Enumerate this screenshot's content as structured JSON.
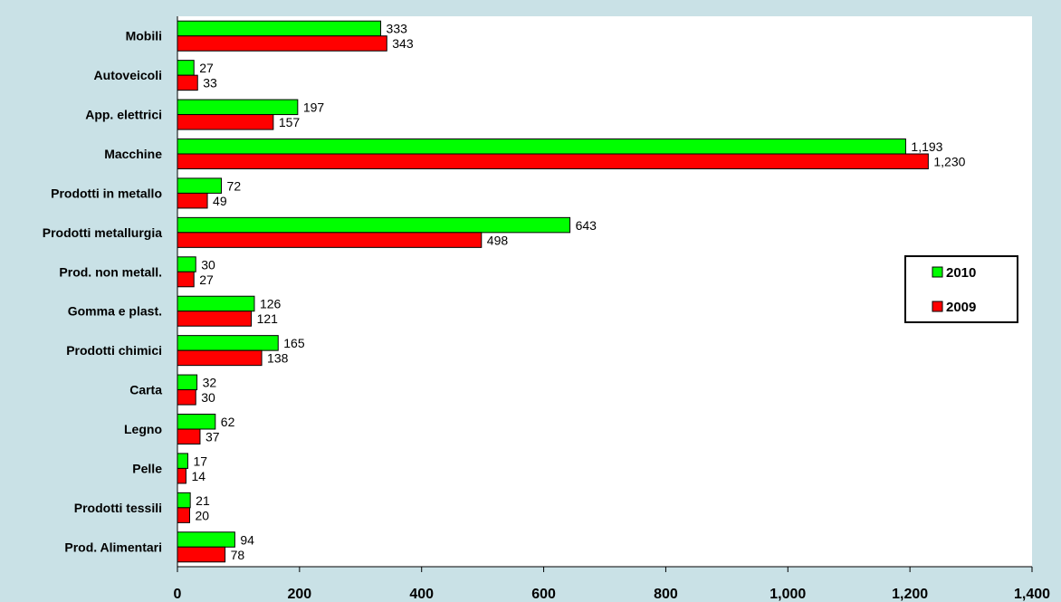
{
  "chart_data": {
    "type": "bar",
    "orientation": "horizontal",
    "categories": [
      "Mobili",
      "Autoveicoli",
      "App. elettrici",
      "Macchine",
      "Prodotti in metallo",
      "Prodotti metallurgia",
      "Prod. non metall.",
      "Gomma e plast.",
      "Prodotti chimici",
      "Carta",
      "Legno",
      "Pelle",
      "Prodotti tessili",
      "Prod. Alimentari"
    ],
    "series": [
      {
        "name": "2010",
        "color": "#00ff00",
        "values": [
          333,
          27,
          197,
          1193,
          72,
          643,
          30,
          126,
          165,
          32,
          62,
          17,
          21,
          94
        ],
        "labels": [
          "333",
          "27",
          "197",
          "1,193",
          "72",
          "643",
          "30",
          "126",
          "165",
          "32",
          "62",
          "17",
          "21",
          "94"
        ]
      },
      {
        "name": "2009",
        "color": "#ff0000",
        "values": [
          343,
          33,
          157,
          1230,
          49,
          498,
          27,
          121,
          138,
          30,
          37,
          14,
          20,
          78
        ],
        "labels": [
          "343",
          "33",
          "157",
          "1,230",
          "49",
          "498",
          "27",
          "121",
          "138",
          "30",
          "37",
          "14",
          "20",
          "78"
        ]
      }
    ],
    "xlim": [
      0,
      1400
    ],
    "x_ticks": [
      0,
      200,
      400,
      600,
      800,
      1000,
      1200,
      1400
    ],
    "x_tick_labels": [
      "0",
      "200",
      "400",
      "600",
      "800",
      "1,000",
      "1,200",
      "1,400"
    ],
    "grid": false,
    "legend_position": "right",
    "plot_background": "#ffffff",
    "page_background": "#c9e1e6"
  }
}
